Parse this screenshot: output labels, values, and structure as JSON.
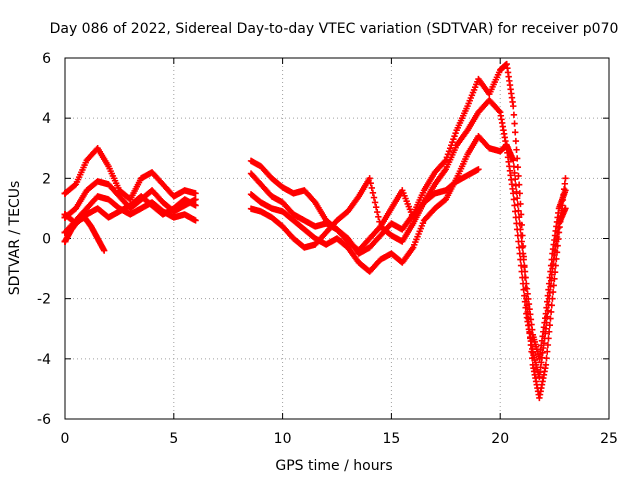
{
  "chart_data": {
    "type": "scatter",
    "title": "Day 086 of 2022, Sidereal Day-to-day VTEC variation (SDTVAR) for receiver p070",
    "xlabel": "GPS time / hours",
    "ylabel": "SDTVAR / TECUs",
    "xlim": [
      0,
      25
    ],
    "ylim": [
      -6,
      6
    ],
    "xticks": [
      "0",
      "5",
      "10",
      "15",
      "20",
      "25"
    ],
    "yticks": [
      "-6",
      "-4",
      "-2",
      "0",
      "2",
      "4",
      "6"
    ],
    "grid": true,
    "marker": "+",
    "color": "#ff0000",
    "series": [
      {
        "x": [
          0,
          0.5,
          1,
          1.5,
          2,
          2.5,
          3,
          3.5,
          4,
          4.5,
          5,
          5.5,
          6,
          8.5,
          9,
          9.5,
          10,
          10.5,
          11,
          11.5,
          12,
          12.5,
          13,
          13.5,
          14,
          14.5,
          15,
          15.5,
          16,
          16.5,
          17,
          17.5,
          18,
          18.5,
          19,
          19.5,
          20,
          20.3,
          20.6,
          20.9,
          21.2,
          21.5,
          21.8,
          22.1,
          22.4,
          22.7,
          23
        ],
        "y": [
          1.5,
          1.8,
          2.6,
          3.0,
          2.4,
          1.6,
          1.3,
          2.0,
          2.2,
          1.8,
          1.4,
          1.6,
          1.5,
          2.6,
          2.4,
          2.0,
          1.7,
          1.5,
          1.6,
          1.2,
          0.6,
          0.3,
          0.0,
          -0.5,
          -0.3,
          0.1,
          0.5,
          0.3,
          0.8,
          1.6,
          2.2,
          2.6,
          3.6,
          4.4,
          5.3,
          4.8,
          5.6,
          5.8,
          4.4,
          1.5,
          -2.0,
          -4.2,
          -5.3,
          -4.2,
          -2.0,
          0.2,
          2.0
        ]
      },
      {
        "x": [
          0,
          0.5,
          1,
          1.5,
          2,
          2.5,
          3,
          3.5,
          4,
          4.5,
          5,
          5.5,
          6,
          8.5,
          9,
          9.5,
          10,
          10.5,
          11,
          11.5,
          12,
          12.5,
          13,
          13.5,
          14,
          14.5,
          15,
          15.5,
          16,
          16.5,
          17,
          17.5,
          18,
          18.5,
          19,
          19.5,
          20,
          20.3,
          20.6,
          20.9,
          21.2,
          21.5,
          21.8,
          22.1,
          22.4,
          22.7,
          23
        ],
        "y": [
          0.7,
          1.0,
          1.6,
          1.9,
          1.8,
          1.4,
          1.0,
          1.3,
          1.6,
          1.2,
          0.9,
          1.1,
          1.3,
          2.2,
          1.8,
          1.4,
          1.2,
          0.8,
          0.6,
          0.4,
          0.5,
          0.3,
          -0.1,
          -0.4,
          0.0,
          0.4,
          0.1,
          -0.1,
          0.5,
          1.2,
          1.8,
          2.3,
          3.1,
          3.6,
          4.2,
          4.6,
          4.2,
          3.0,
          1.5,
          -0.5,
          -2.5,
          -3.8,
          -4.6,
          -3.0,
          -1.0,
          0.5,
          1.0
        ]
      },
      {
        "x": [
          0,
          0.5,
          1,
          1.5,
          2,
          2.5,
          3,
          3.5,
          4,
          4.5,
          5,
          5.5,
          6,
          8.5,
          9,
          9.5,
          10,
          10.5,
          11,
          11.5,
          12,
          12.5,
          13,
          13.5,
          14,
          14.5,
          15,
          15.5,
          16,
          16.5,
          17,
          17.5,
          18,
          18.5,
          19,
          19.5,
          20,
          20.3,
          20.6,
          20.9,
          21.2,
          21.5,
          21.8,
          22.1,
          22.4,
          22.7,
          23
        ],
        "y": [
          0.2,
          0.6,
          1.0,
          1.4,
          1.3,
          1.0,
          0.8,
          1.0,
          1.2,
          0.9,
          0.7,
          0.8,
          0.6,
          1.5,
          1.2,
          1.0,
          0.9,
          0.6,
          0.3,
          0.0,
          -0.2,
          0.0,
          -0.3,
          -0.8,
          -1.1,
          -0.7,
          -0.5,
          -0.8,
          -0.3,
          0.6,
          1.0,
          1.3,
          2.0,
          2.8,
          3.4,
          3.0,
          2.9,
          3.1,
          2.6,
          0.5,
          -1.5,
          -3.2,
          -4.0,
          -2.5,
          -0.5,
          1.0,
          1.6
        ]
      },
      {
        "x": [
          0,
          0.5,
          1,
          1.5,
          2,
          2.5,
          3,
          3.5,
          4,
          4.5,
          5,
          5.5,
          6,
          8.5,
          9,
          9.5,
          10,
          10.5,
          11,
          11.5,
          12,
          12.5,
          13,
          13.5,
          14,
          14.5,
          15,
          15.5,
          16,
          16.5,
          17,
          17.5,
          18,
          18.5,
          19
        ],
        "y": [
          0.8,
          0.5,
          0.8,
          1.0,
          0.7,
          0.9,
          1.1,
          1.4,
          1.1,
          0.8,
          1.0,
          1.3,
          1.1,
          1.0,
          0.9,
          0.7,
          0.4,
          0.0,
          -0.3,
          -0.2,
          0.2,
          0.6,
          0.9,
          1.4,
          2.0,
          0.4,
          1.0,
          1.6,
          0.7,
          1.2,
          1.5,
          1.6,
          1.9,
          2.1,
          2.3
        ]
      },
      {
        "x": [
          0,
          0.3,
          0.6,
          0.9,
          1.2,
          1.5,
          1.8
        ],
        "y": [
          -0.1,
          0.3,
          0.6,
          0.7,
          0.4,
          0.0,
          -0.4
        ]
      }
    ]
  }
}
